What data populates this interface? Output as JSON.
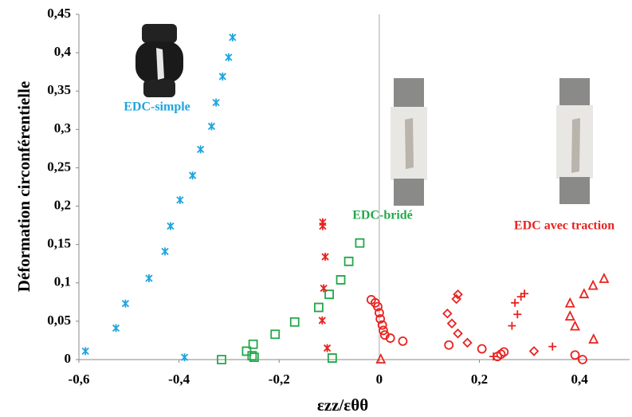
{
  "chart_data": {
    "type": "scatter",
    "x_label": "εzz/εθθ",
    "y_label": "Déformation circonférentielle",
    "xlim": [
      -0.6,
      0.5
    ],
    "ylim": [
      0,
      0.45
    ],
    "xticks": [
      {
        "value": -0.6,
        "label": "-0,6"
      },
      {
        "value": -0.4,
        "label": "-0,4"
      },
      {
        "value": -0.2,
        "label": "-0,2"
      },
      0,
      {
        "value": 0.2,
        "label": "0,2"
      },
      {
        "value": 0.4,
        "label": "0,4"
      }
    ],
    "yticks": [
      0,
      {
        "value": 0.05,
        "label": "0,05"
      },
      {
        "value": 0.1,
        "label": "0,1"
      },
      {
        "value": 0.15,
        "label": "0,15"
      },
      {
        "value": 0.2,
        "label": "0,2"
      },
      {
        "value": 0.25,
        "label": "0,25"
      },
      {
        "value": 0.3,
        "label": "0,3"
      },
      {
        "value": 0.35,
        "label": "0,35"
      },
      {
        "value": 0.4,
        "label": "0,4"
      },
      {
        "value": 0.45,
        "label": "0,45"
      }
    ],
    "annotations": [
      {
        "text": "EDC-simple",
        "color": "#1ea5de"
      },
      {
        "text": "EDC-bridé",
        "color": "#22a84a"
      },
      {
        "text": "EDC avec traction",
        "color": "#e8231f"
      }
    ],
    "series": [
      {
        "name": "EDC-simple",
        "color": "#1ea5de",
        "marker": "asterisk",
        "x": [
          -0.587,
          -0.526,
          -0.507,
          -0.46,
          -0.428,
          -0.417,
          -0.398,
          -0.373,
          -0.357,
          -0.335,
          -0.326,
          -0.313,
          -0.301,
          -0.293,
          -0.389
        ],
        "values": [
          0.011,
          0.041,
          0.073,
          0.106,
          0.141,
          0.174,
          0.208,
          0.24,
          0.274,
          0.304,
          0.335,
          0.369,
          0.394,
          0.42,
          0.003
        ]
      },
      {
        "name": "EDC-bridé",
        "color": "#22a84a",
        "marker": "square",
        "x": [
          -0.315,
          -0.265,
          -0.254,
          -0.252,
          -0.25,
          -0.208,
          -0.169,
          -0.121,
          -0.1,
          -0.094,
          -0.077,
          -0.061,
          -0.039
        ],
        "values": [
          0.0,
          0.011,
          0.005,
          0.02,
          0.003,
          0.033,
          0.049,
          0.068,
          0.085,
          0.002,
          0.104,
          0.128,
          0.152
        ]
      },
      {
        "color": "#e8231f",
        "marker": "x",
        "x": [
          -0.113,
          -0.113,
          -0.108,
          -0.111,
          -0.114,
          -0.104
        ],
        "values": [
          0.179,
          0.174,
          0.134,
          0.093,
          0.051,
          0.015
        ]
      },
      {
        "color": "#e8231f",
        "marker": "circle",
        "x": [
          -0.016,
          -0.008,
          -0.003,
          0.0,
          0.002,
          0.006,
          0.008,
          0.011,
          0.022,
          0.047,
          0.139,
          0.205,
          0.249,
          0.243,
          0.236,
          0.391,
          0.406
        ],
        "values": [
          0.078,
          0.074,
          0.069,
          0.061,
          0.053,
          0.045,
          0.038,
          0.032,
          0.028,
          0.024,
          0.019,
          0.014,
          0.01,
          0.007,
          0.004,
          0.006,
          0.0
        ]
      },
      {
        "color": "#e8231f",
        "marker": "diamond",
        "x": [
          0.136,
          0.145,
          0.157,
          0.176,
          0.154,
          0.157,
          0.309
        ],
        "values": [
          0.06,
          0.047,
          0.034,
          0.022,
          0.079,
          0.085,
          0.011
        ]
      },
      {
        "color": "#e8231f",
        "marker": "plus",
        "x": [
          0.228,
          0.265,
          0.276,
          0.271,
          0.283,
          0.29,
          0.346
        ],
        "values": [
          0.004,
          0.044,
          0.059,
          0.074,
          0.082,
          0.086,
          0.017
        ]
      },
      {
        "color": "#e8231f",
        "marker": "triangle",
        "x": [
          0.003,
          0.381,
          0.381,
          0.391,
          0.409,
          0.427,
          0.449,
          0.428
        ],
        "values": [
          0.0,
          0.073,
          0.056,
          0.043,
          0.085,
          0.096,
          0.105,
          0.026
        ]
      }
    ]
  }
}
